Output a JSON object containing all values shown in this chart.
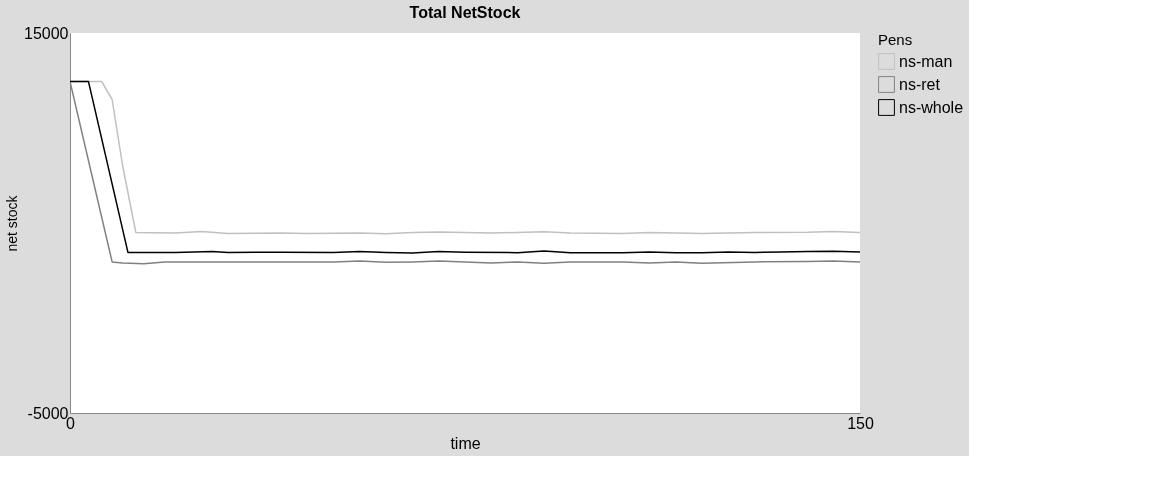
{
  "chart_data": {
    "type": "line",
    "title": "Total NetStock",
    "xlabel": "time",
    "ylabel": "net stock",
    "legend_title": "Pens",
    "legend": "top right",
    "xlim": [
      0,
      150
    ],
    "ylim": [
      -5000,
      15000
    ],
    "xticks": [
      0,
      150
    ],
    "yticks": [
      {
        "value": -5000,
        "label": "-5000"
      },
      {
        "value": 15000,
        "label": "15000"
      }
    ],
    "grid": false,
    "marker": "none",
    "line_style": "solid",
    "series": [
      {
        "name": "ns-man",
        "color": "#c0c0c0",
        "x": [
          0,
          6,
          8,
          10,
          12.5,
          20,
          25,
          30,
          40,
          45,
          55,
          60,
          65,
          70,
          80,
          90,
          95,
          105,
          110,
          120,
          130,
          140,
          145,
          150
        ],
        "values": [
          12450,
          12450,
          11500,
          8000,
          4500,
          4480,
          4550,
          4450,
          4480,
          4450,
          4480,
          4430,
          4500,
          4530,
          4470,
          4540,
          4470,
          4450,
          4500,
          4450,
          4500,
          4510,
          4550,
          4500
        ]
      },
      {
        "name": "ns-ret",
        "color": "#808080",
        "x": [
          0,
          8,
          10,
          14,
          18,
          25,
          30,
          40,
          50,
          55,
          60,
          65,
          70,
          80,
          85,
          90,
          95,
          105,
          110,
          115,
          120,
          130,
          140,
          145,
          150
        ],
        "values": [
          12450,
          2950,
          2900,
          2850,
          2950,
          2950,
          2950,
          2950,
          2950,
          3000,
          2930,
          2950,
          3000,
          2900,
          2950,
          2880,
          2950,
          2950,
          2900,
          2950,
          2880,
          2950,
          2980,
          3000,
          2950
        ]
      },
      {
        "name": "ns-whole",
        "color": "#000000",
        "x": [
          0,
          3.5,
          11,
          20,
          27,
          30,
          40,
          50,
          55,
          60,
          65,
          70,
          75,
          85,
          90,
          95,
          105,
          110,
          115,
          120,
          125,
          130,
          135,
          140,
          145,
          150
        ],
        "values": [
          12450,
          12450,
          3450,
          3450,
          3500,
          3450,
          3460,
          3450,
          3500,
          3450,
          3420,
          3500,
          3460,
          3440,
          3520,
          3440,
          3440,
          3480,
          3430,
          3440,
          3470,
          3450,
          3480,
          3500,
          3510,
          3480
        ]
      }
    ]
  }
}
